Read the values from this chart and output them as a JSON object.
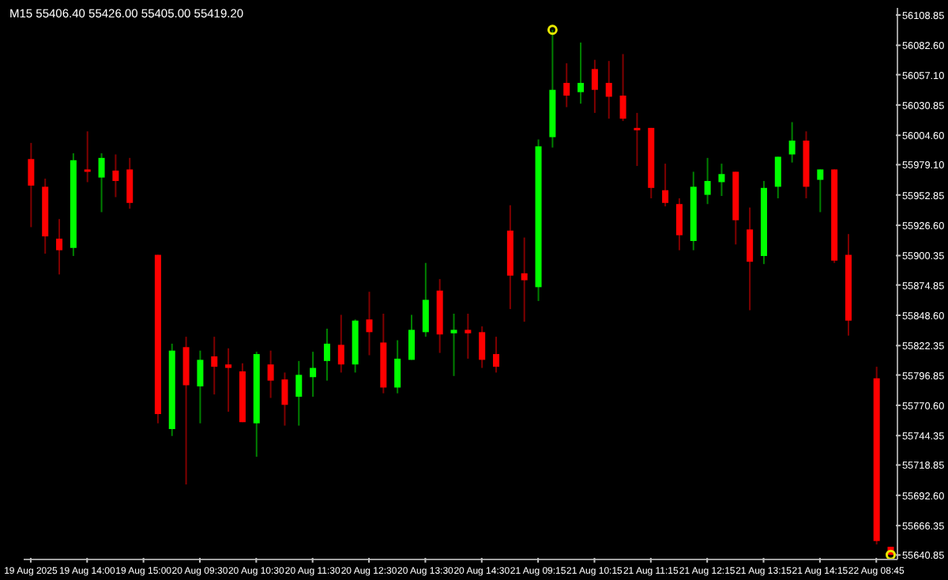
{
  "chart_data": {
    "type": "candlestick",
    "title": "M15 55406.40 55426.00 55405.00 55419.20",
    "categories": [
      "19 Aug 2025",
      null,
      null,
      null,
      "19 Aug 14:00",
      null,
      null,
      null,
      "19 Aug 15:00",
      null,
      null,
      null,
      "20 Aug 09:30",
      null,
      null,
      null,
      "20 Aug 10:30",
      null,
      null,
      null,
      "20 Aug 11:30",
      null,
      null,
      null,
      "20 Aug 12:30",
      null,
      null,
      null,
      "20 Aug 13:30",
      null,
      null,
      null,
      "20 Aug 14:30",
      null,
      null,
      null,
      "21 Aug 09:15",
      null,
      null,
      null,
      "21 Aug 10:15",
      null,
      null,
      null,
      "21 Aug 11:15",
      null,
      null,
      null,
      "21 Aug 12:15",
      null,
      null,
      null,
      "21 Aug 13:15",
      null,
      null,
      null,
      "21 Aug 14:15",
      null,
      null,
      null,
      "22 Aug 08:45",
      null
    ],
    "ohlc": [
      [
        55984,
        55998,
        55925,
        55961
      ],
      [
        55960,
        55967,
        55902,
        55917
      ],
      [
        55915,
        55932,
        55884,
        55905
      ],
      [
        55907,
        55989,
        55900,
        55983
      ],
      [
        55975,
        56008,
        55964,
        55973
      ],
      [
        55968,
        55989,
        55938,
        55985
      ],
      [
        55974,
        55988,
        55951,
        55965
      ],
      [
        55975,
        55985,
        55941,
        55946
      ],
      null,
      [
        55901,
        55901,
        55755,
        55763
      ],
      [
        55750,
        55824,
        55744,
        55818
      ],
      [
        55821,
        55830,
        55702,
        55788
      ],
      [
        55787,
        55818,
        55755,
        55810
      ],
      [
        55813,
        55830,
        55780,
        55804
      ],
      [
        55806,
        55820,
        55765,
        55803
      ],
      [
        55800,
        55807,
        55756,
        55756
      ],
      [
        55755,
        55817,
        55726,
        55815
      ],
      [
        55806,
        55818,
        55777,
        55792
      ],
      [
        55793,
        55799,
        55753,
        55771
      ],
      [
        55778,
        55809,
        55753,
        55797
      ],
      [
        55795,
        55817,
        55778,
        55803
      ],
      [
        55809,
        55837,
        55792,
        55824
      ],
      [
        55823,
        55849,
        55799,
        55806
      ],
      [
        55806,
        55845,
        55799,
        55844
      ],
      [
        55845,
        55869,
        55814,
        55834
      ],
      [
        55825,
        55850,
        55781,
        55786
      ],
      [
        55786,
        55827,
        55781,
        55811
      ],
      [
        55810,
        55849,
        55810,
        55836
      ],
      [
        55834,
        55894,
        55830,
        55862
      ],
      [
        55870,
        55880,
        55816,
        55832
      ],
      [
        55833,
        55850,
        55796,
        55836
      ],
      [
        55836,
        55850,
        55811,
        55833
      ],
      [
        55834,
        55839,
        55803,
        55810
      ],
      [
        55815,
        55830,
        55799,
        55804
      ],
      [
        55922,
        55944,
        55854,
        55883
      ],
      [
        55885,
        55916,
        55843,
        55879
      ],
      [
        55873,
        56001,
        55861,
        55995
      ],
      [
        56003,
        56096,
        55994,
        56044
      ],
      [
        56050,
        56067,
        56029,
        56039
      ],
      [
        56042,
        56085,
        56032,
        56050
      ],
      [
        56062,
        56070,
        56024,
        56044
      ],
      [
        56050,
        56069,
        56019,
        56038
      ],
      [
        56039,
        56075,
        56017,
        56019
      ],
      [
        56011,
        56024,
        55978,
        56009
      ],
      [
        56011,
        56011,
        55950,
        55959
      ],
      [
        55957,
        55980,
        55943,
        55946
      ],
      [
        55945,
        55950,
        55905,
        55918
      ],
      [
        55913,
        55973,
        55905,
        55960
      ],
      [
        55953,
        55985,
        55945,
        55965
      ],
      [
        55964,
        55980,
        55952,
        55971
      ],
      [
        55973,
        55973,
        55910,
        55931
      ],
      [
        55923,
        55942,
        55853,
        55895
      ],
      [
        55900,
        55965,
        55893,
        55959
      ],
      [
        55960,
        55986,
        55950,
        55986
      ],
      [
        55988,
        56016,
        55981,
        56000
      ],
      [
        56000,
        56008,
        55950,
        55960
      ],
      [
        55966,
        55975,
        55938,
        55975
      ],
      [
        55975,
        55975,
        55894,
        55896
      ],
      [
        55901,
        55919,
        55831,
        55844
      ],
      null,
      [
        55794,
        55804,
        55650,
        55653
      ],
      [
        55648,
        55648,
        55641,
        55641
      ]
    ],
    "colors": [
      "#ff0000",
      "#ff0000",
      "#ff0000",
      "#00ff00",
      "#ff0000",
      "#00ff00",
      "#ff0000",
      "#ff0000",
      null,
      "#ff0000",
      "#00ff00",
      "#ff0000",
      "#00ff00",
      "#ff0000",
      "#ff0000",
      "#ff0000",
      "#00ff00",
      "#ff0000",
      "#ff0000",
      "#00ff00",
      "#00ff00",
      "#00ff00",
      "#ff0000",
      "#00ff00",
      "#ff0000",
      "#ff0000",
      "#00ff00",
      "#00ff00",
      "#00ff00",
      "#ff0000",
      "#00ff00",
      "#ff0000",
      "#ff0000",
      "#ff0000",
      "#ff0000",
      "#ff0000",
      "#00ff00",
      "#00ff00",
      "#ff0000",
      "#00ff00",
      "#ff0000",
      "#ff0000",
      "#ff0000",
      "#ff0000",
      "#ff0000",
      "#ff0000",
      "#ff0000",
      "#00ff00",
      "#00ff00",
      "#00ff00",
      "#ff0000",
      "#ff0000",
      "#00ff00",
      "#00ff00",
      "#00ff00",
      "#ff0000",
      "#00ff00",
      "#ff0000",
      "#ff0000",
      null,
      "#ff0000",
      "#ff0000"
    ],
    "ylim": [
      55637,
      56115
    ],
    "yticks": [
      56108.85,
      {
        "value": 56082.6,
        "label": "56082.60"
      },
      {
        "value": 56057.1,
        "label": "56057.10"
      },
      56030.85,
      {
        "value": 56004.6,
        "label": "56004.60"
      },
      {
        "value": 55979.1,
        "label": "55979.10"
      },
      55952.85,
      {
        "value": 55926.6,
        "label": "55926.60"
      },
      55900.35,
      55874.85,
      {
        "value": 55848.6,
        "label": "55848.60"
      },
      55822.35,
      55796.85,
      {
        "value": 55770.6,
        "label": "55770.60"
      },
      55744.35,
      55718.85,
      {
        "value": 55692.6,
        "label": "55692.60"
      },
      55666.35,
      55640.85
    ]
  }
}
